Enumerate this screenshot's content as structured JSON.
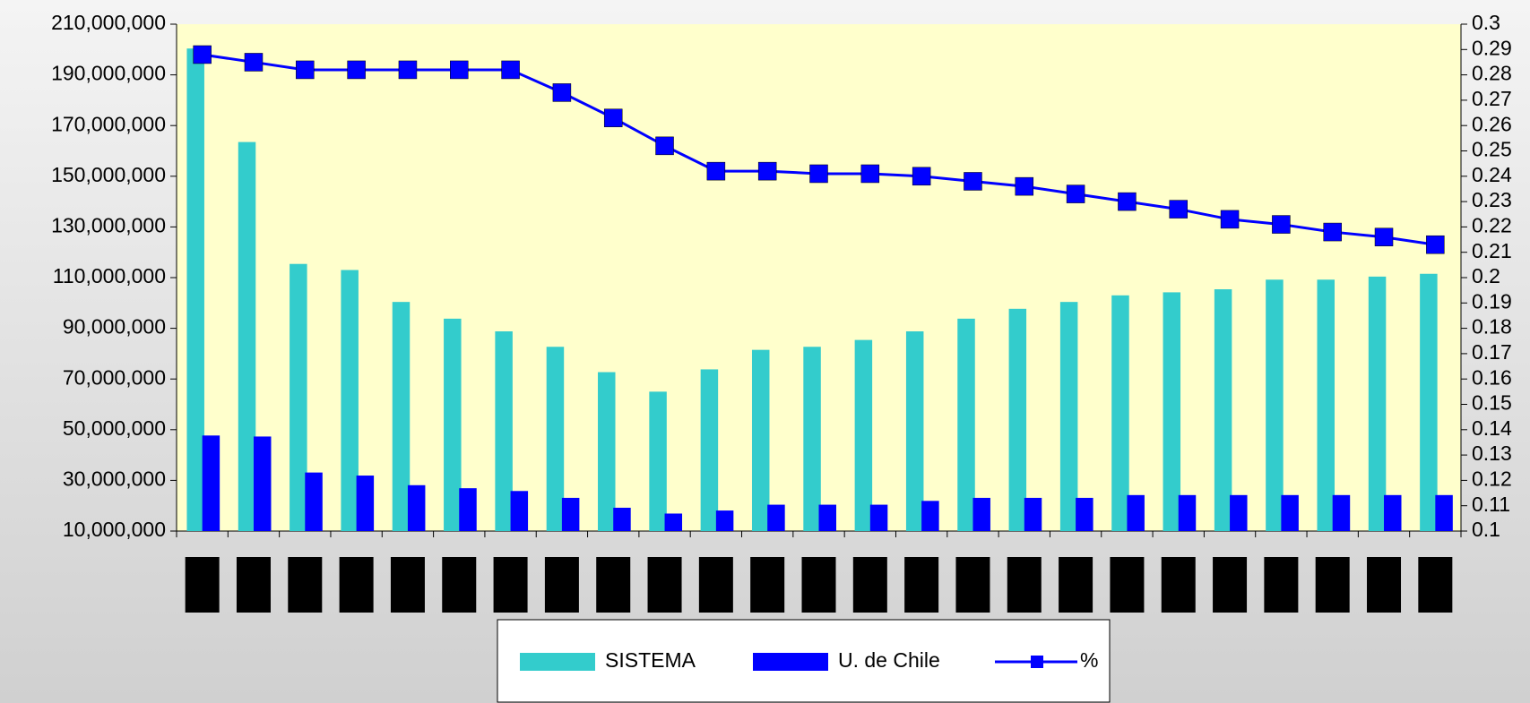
{
  "chart_data": {
    "type": "bar",
    "categories": [
      null,
      null,
      null,
      null,
      null,
      null,
      null,
      null,
      null,
      null,
      null,
      null,
      null,
      null,
      null,
      null,
      null,
      null,
      null,
      null,
      null,
      null,
      null,
      null,
      null
    ],
    "series": [
      {
        "name": "SISTEMA",
        "color": "#33cccc",
        "values": [
          200400000,
          163500000,
          115400000,
          113000000,
          100400000,
          93800000,
          88800000,
          82700000,
          72700000,
          65000000,
          73800000,
          81500000,
          82700000,
          85400000,
          88800000,
          93800000,
          97700000,
          100400000,
          103000000,
          104200000,
          105400000,
          109200000,
          109200000,
          110400000,
          111500000
        ]
      },
      {
        "name": "U. de Chile",
        "color": "#0000ff",
        "values": [
          47700000,
          47300000,
          33100000,
          31900000,
          28100000,
          26900000,
          25800000,
          23100000,
          19200000,
          16900000,
          18100000,
          20400000,
          20400000,
          20400000,
          21900000,
          23100000,
          23100000,
          23100000,
          24200000,
          24200000,
          24200000,
          24200000,
          24200000,
          24200000,
          24200000
        ]
      },
      {
        "name": "%",
        "color": "#0000ff",
        "type": "line",
        "axis": "y2",
        "values": [
          0.288,
          0.285,
          0.282,
          0.282,
          0.282,
          0.282,
          0.282,
          0.273,
          0.263,
          0.252,
          0.242,
          0.242,
          0.241,
          0.241,
          0.24,
          0.238,
          0.236,
          0.233,
          0.23,
          0.227,
          0.223,
          0.221,
          0.218,
          0.216,
          0.213
        ]
      }
    ],
    "ylim": [
      10000000,
      210000000
    ],
    "yticks": [
      {
        "value": 10000000,
        "label": "10,000,000"
      },
      {
        "value": 30000000,
        "label": "30,000,000"
      },
      {
        "value": 50000000,
        "label": "50,000,000"
      },
      {
        "value": 70000000,
        "label": "70,000,000"
      },
      {
        "value": 90000000,
        "label": "90,000,000"
      },
      {
        "value": 110000000,
        "label": "110,000,000"
      },
      {
        "value": 130000000,
        "label": "130,000,000"
      },
      {
        "value": 150000000,
        "label": "150,000,000"
      },
      {
        "value": 170000000,
        "label": "170,000,000"
      },
      {
        "value": 190000000,
        "label": "190,000,000"
      },
      {
        "value": 210000000,
        "label": "210,000,000"
      }
    ],
    "y2lim": [
      0.1,
      0.3
    ],
    "y2ticks": [
      0.1,
      0.11,
      0.12,
      0.13,
      0.14,
      0.15,
      0.16,
      0.17,
      0.18,
      0.19,
      0.2,
      0.21,
      0.22,
      0.23,
      0.24,
      0.25,
      0.26,
      0.27,
      0.28,
      0.29,
      0.3
    ],
    "legend": "bottom"
  }
}
